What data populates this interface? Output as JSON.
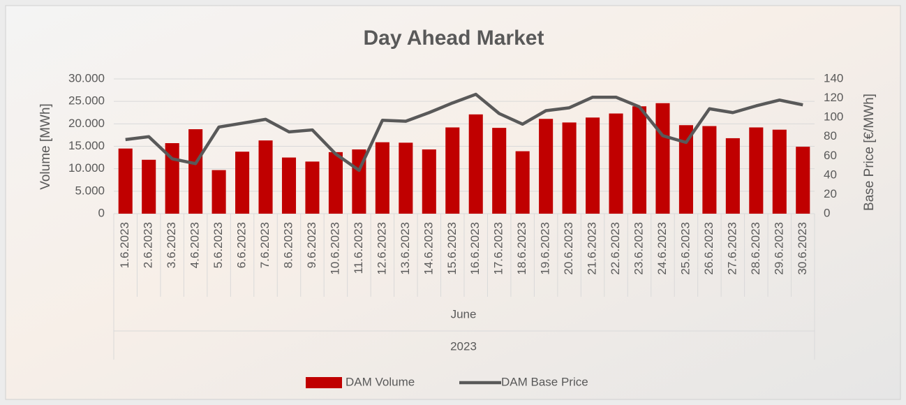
{
  "chart_data": {
    "type": "combo",
    "title": "Day Ahead Market",
    "y_label": "Volume [MWh]",
    "y2_label": "Base Price [€/MWh]",
    "categories": [
      "1.6.2023",
      "2.6.2023",
      "3.6.2023",
      "4.6.2023",
      "5.6.2023",
      "6.6.2023",
      "7.6.2023",
      "8.6.2023",
      "9.6.2023",
      "10.6.2023",
      "11.6.2023",
      "12.6.2023",
      "13.6.2023",
      "14.6.2023",
      "15.6.2023",
      "16.6.2023",
      "17.6.2023",
      "18.6.2023",
      "19.6.2023",
      "20.6.2023",
      "21.6.2023",
      "22.6.2023",
      "23.6.2023",
      "24.6.2023",
      "25.6.2023",
      "26.6.2023",
      "27.6.2023",
      "28.6.2023",
      "29.6.2023",
      "30.6.2023"
    ],
    "category_groups": [
      "June",
      "2023"
    ],
    "series": [
      {
        "name": "DAM Volume",
        "type": "bar",
        "color": "#c00000",
        "values": [
          14500,
          12000,
          15700,
          18800,
          9700,
          13800,
          16300,
          12500,
          11600,
          13700,
          14300,
          15900,
          15800,
          14300,
          19200,
          22100,
          19100,
          13900,
          21100,
          20300,
          21400,
          22300,
          23900,
          24600,
          19700,
          19500,
          16800,
          19200,
          18700,
          14900
        ]
      },
      {
        "name": "DAM Base Price",
        "type": "line",
        "axis": "y2",
        "color": "#595959",
        "values": [
          77,
          80,
          57,
          52,
          90,
          94,
          98,
          85,
          87,
          62,
          45,
          97,
          96,
          105,
          115,
          124,
          104,
          93,
          107,
          110,
          121,
          121,
          111,
          81,
          74,
          109,
          105,
          112,
          118,
          113
        ]
      }
    ],
    "ylim": [
      0,
      30000
    ],
    "yticks": [
      0,
      {
        "value": 5000,
        "label": "5.000"
      },
      {
        "value": 10000,
        "label": "10.000"
      },
      {
        "value": 15000,
        "label": "15.000"
      },
      {
        "value": 20000,
        "label": "20.000"
      },
      {
        "value": 25000,
        "label": "25.000"
      },
      {
        "value": 30000,
        "label": "30.000"
      }
    ],
    "y2lim": [
      0,
      140
    ],
    "y2ticks": [
      0,
      20,
      40,
      60,
      80,
      100,
      120,
      140
    ],
    "grid": true,
    "legend": "bottom"
  }
}
